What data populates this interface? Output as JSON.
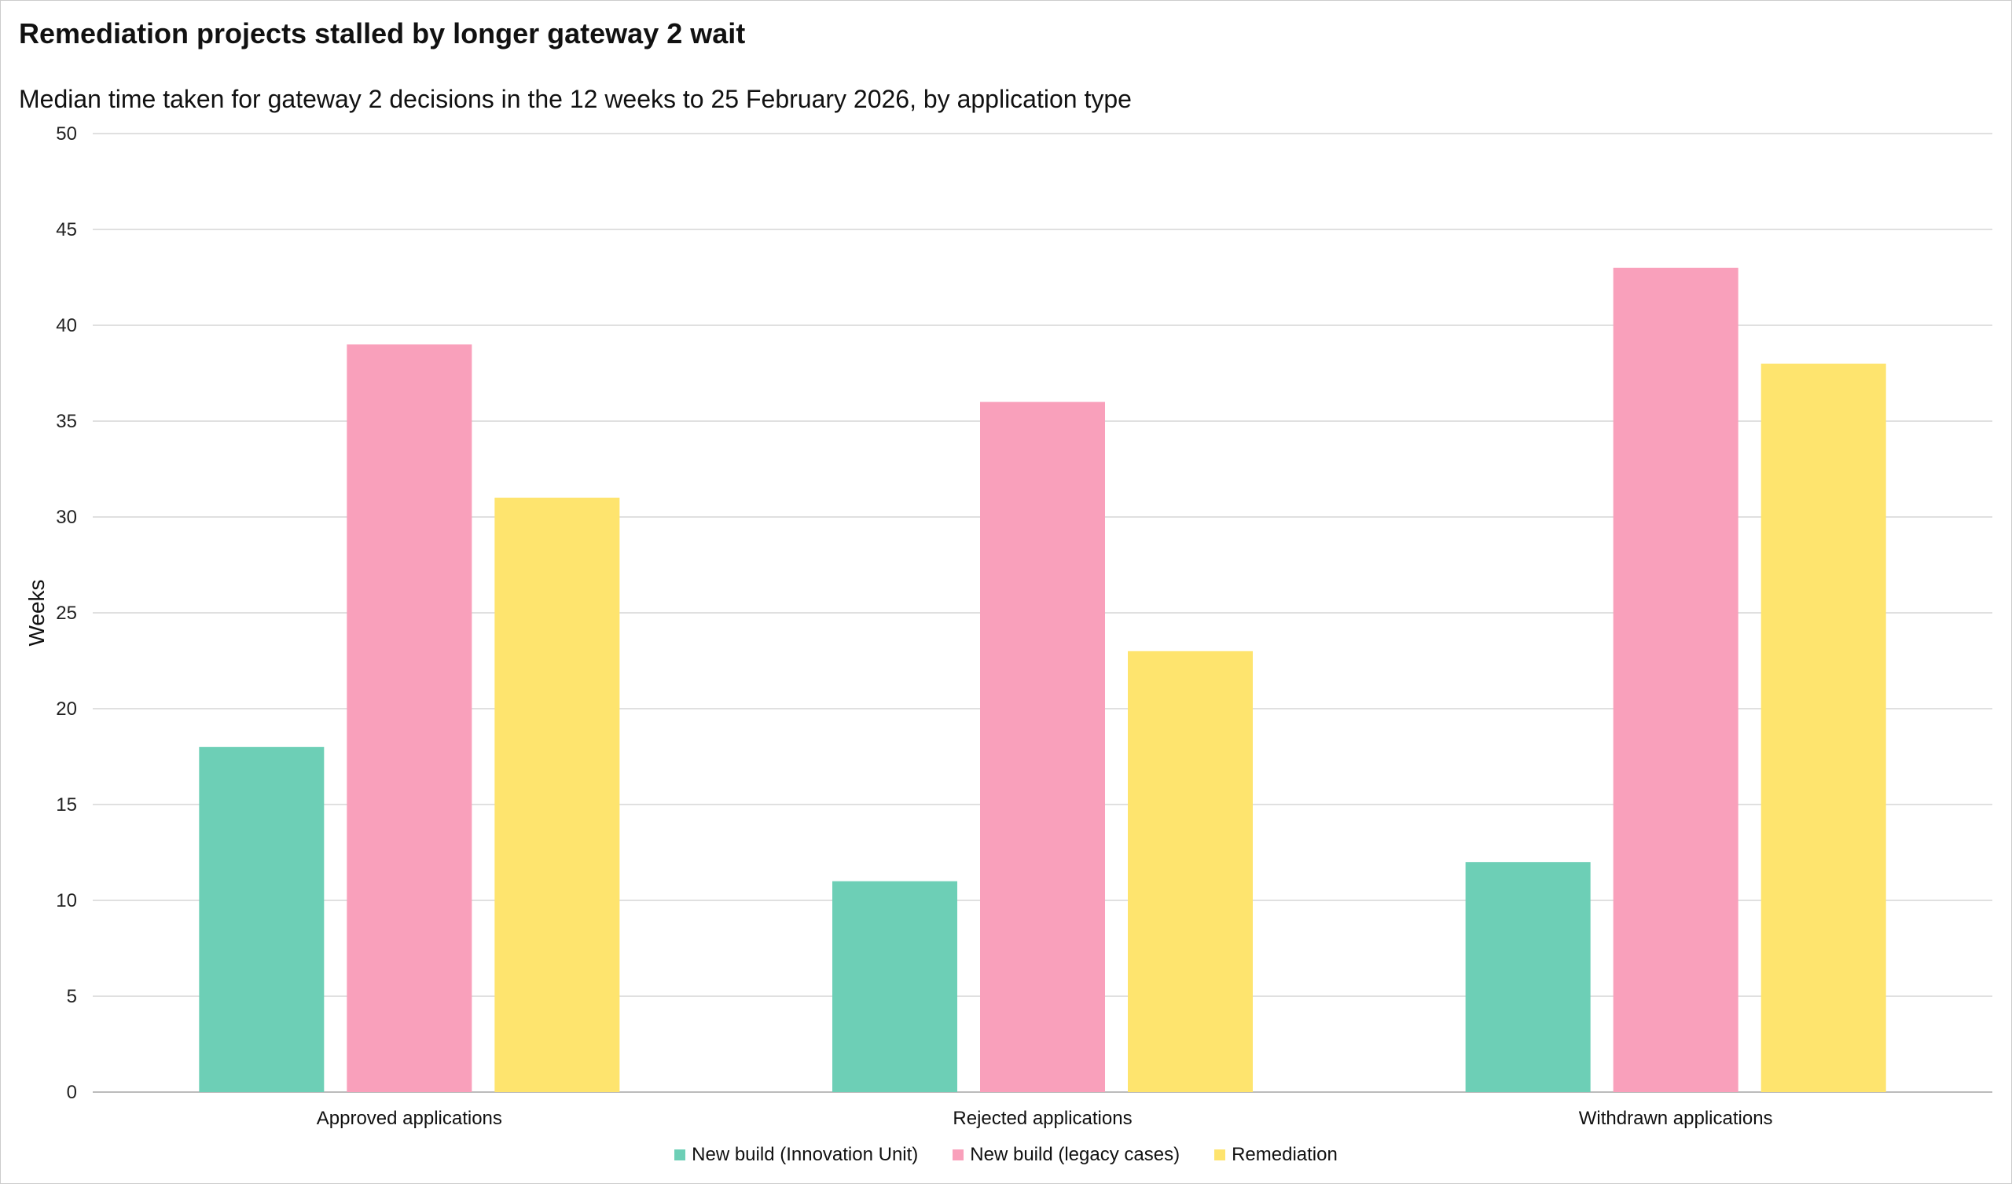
{
  "title": "Remediation projects stalled by longer gateway 2 wait",
  "subtitle": "Median time taken for gateway 2 decisions in the 12 weeks to 25 February 2026, by application type",
  "chart_data": {
    "type": "bar",
    "title": "Remediation projects stalled by longer gateway 2 wait",
    "xlabel": "",
    "ylabel": "Weeks",
    "ylim": [
      0,
      50
    ],
    "yticks": [
      0,
      5,
      10,
      15,
      20,
      25,
      30,
      35,
      40,
      45,
      50
    ],
    "grid": true,
    "legend_position": "bottom",
    "categories": [
      "Approved applications",
      "Rejected applications",
      "Withdrawn applications"
    ],
    "series": [
      {
        "name": "New build (Innovation Unit)",
        "color": "#6dcfb6",
        "values": [
          18,
          11,
          12
        ]
      },
      {
        "name": "New build (legacy cases)",
        "color": "#f9a0bb",
        "values": [
          39,
          36,
          43
        ]
      },
      {
        "name": "Remediation",
        "color": "#fee46e",
        "values": [
          31,
          23,
          38
        ]
      }
    ]
  }
}
